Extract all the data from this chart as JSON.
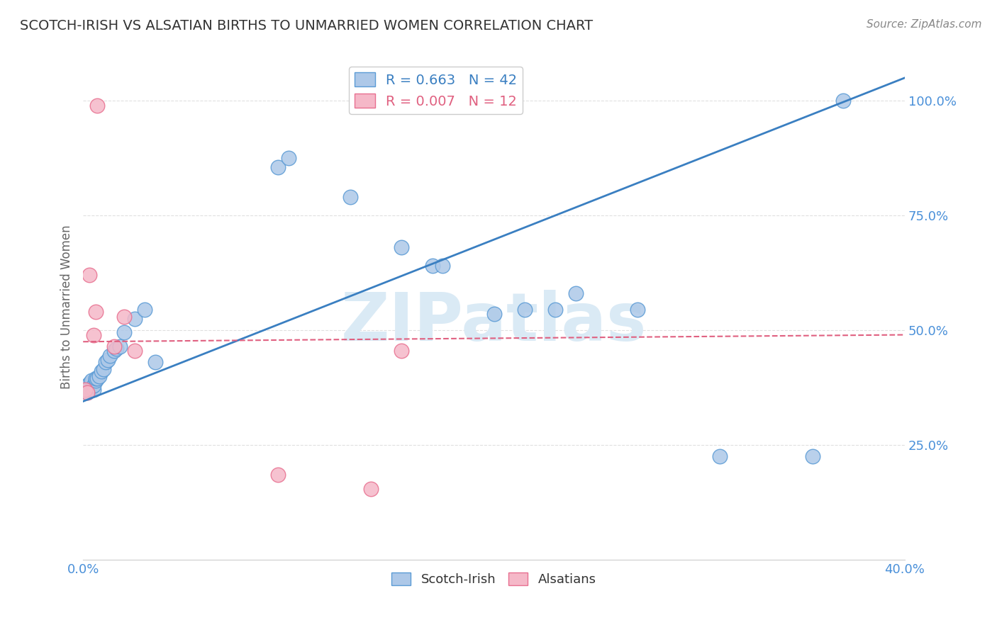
{
  "title": "SCOTCH-IRISH VS ALSATIAN BIRTHS TO UNMARRIED WOMEN CORRELATION CHART",
  "source": "Source: ZipAtlas.com",
  "ylabel": "Births to Unmarried Women",
  "xlim": [
    0.0,
    0.4
  ],
  "ylim": [
    0.0,
    1.1
  ],
  "xticks": [
    0.0,
    0.05,
    0.1,
    0.15,
    0.2,
    0.25,
    0.3,
    0.35,
    0.4
  ],
  "xticklabels": [
    "0.0%",
    "",
    "",
    "",
    "",
    "",
    "",
    "",
    "40.0%"
  ],
  "yticks": [
    0.25,
    0.5,
    0.75,
    1.0
  ],
  "yticklabels": [
    "25.0%",
    "50.0%",
    "75.0%",
    "100.0%"
  ],
  "scotch_irish_R": 0.663,
  "scotch_irish_N": 42,
  "alsatian_R": 0.007,
  "alsatian_N": 12,
  "scotch_irish_color": "#adc8e8",
  "alsatian_color": "#f5b8c8",
  "scotch_irish_edge_color": "#5b9bd5",
  "alsatian_edge_color": "#e87090",
  "scotch_irish_line_color": "#3a7fc1",
  "alsatian_line_color": "#e06080",
  "scotch_irish_x": [
    0.001,
    0.001,
    0.002,
    0.002,
    0.002,
    0.003,
    0.003,
    0.003,
    0.004,
    0.004,
    0.005,
    0.005,
    0.006,
    0.006,
    0.007,
    0.008,
    0.009,
    0.01,
    0.011,
    0.012,
    0.013,
    0.015,
    0.016,
    0.018,
    0.02,
    0.025,
    0.03,
    0.035,
    0.095,
    0.1,
    0.13,
    0.155,
    0.17,
    0.175,
    0.2,
    0.215,
    0.23,
    0.24,
    0.27,
    0.31,
    0.355,
    0.37
  ],
  "scotch_irish_y": [
    0.37,
    0.375,
    0.365,
    0.37,
    0.38,
    0.37,
    0.375,
    0.385,
    0.375,
    0.39,
    0.37,
    0.38,
    0.39,
    0.395,
    0.395,
    0.4,
    0.41,
    0.415,
    0.43,
    0.435,
    0.445,
    0.455,
    0.46,
    0.465,
    0.495,
    0.525,
    0.545,
    0.43,
    0.855,
    0.875,
    0.79,
    0.68,
    0.64,
    0.64,
    0.535,
    0.545,
    0.545,
    0.58,
    0.545,
    0.225,
    0.225,
    1.0
  ],
  "alsatian_x": [
    0.001,
    0.002,
    0.003,
    0.005,
    0.006,
    0.007,
    0.015,
    0.02,
    0.025,
    0.095,
    0.14,
    0.155
  ],
  "alsatian_y": [
    0.37,
    0.365,
    0.62,
    0.49,
    0.54,
    0.99,
    0.465,
    0.53,
    0.455,
    0.185,
    0.155,
    0.455
  ],
  "watermark_text": "ZIPatlas",
  "watermark_color": "#daeaf5",
  "background_color": "#ffffff",
  "grid_color": "#e0e0e0",
  "title_color": "#333333",
  "axis_label_color": "#666666",
  "tick_color": "#4a90d9",
  "si_line_x0": 0.0,
  "si_line_y0": 0.345,
  "si_line_x1": 0.4,
  "si_line_y1": 1.05,
  "al_line_x0": 0.0,
  "al_line_y0": 0.475,
  "al_line_x1": 0.4,
  "al_line_y1": 0.49
}
